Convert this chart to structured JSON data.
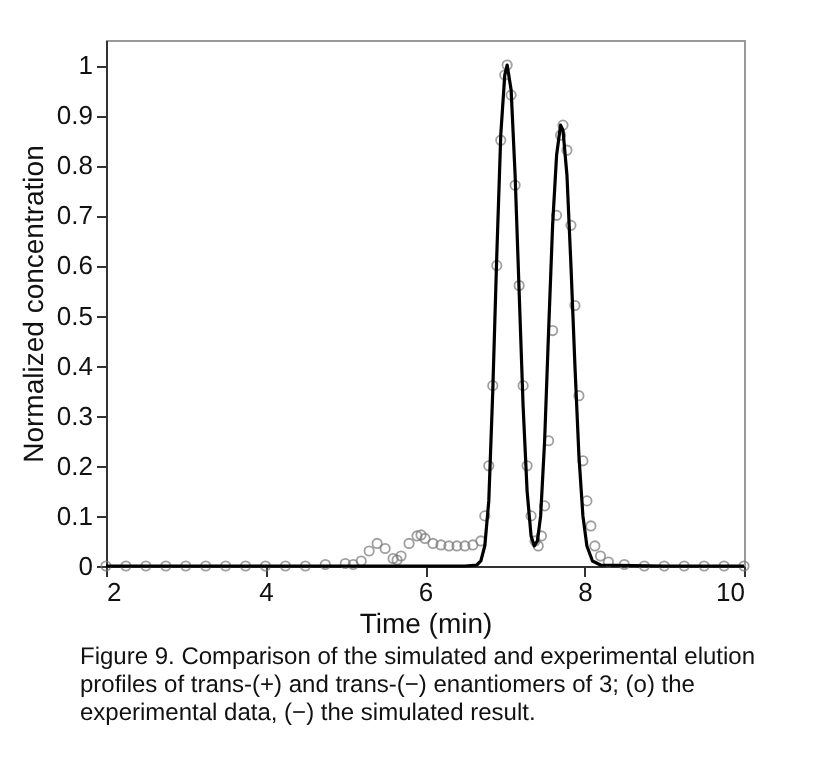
{
  "chart_data": {
    "type": "line",
    "xlabel": "Time (min)",
    "ylabel": "Normalized concentration",
    "xlim": [
      2,
      10
    ],
    "ylim": [
      0,
      1.05
    ],
    "xticks": [
      2,
      4,
      6,
      8,
      10
    ],
    "yticks": [
      0,
      0.1,
      0.2,
      0.3,
      0.4,
      0.5,
      0.6,
      0.7,
      0.8,
      0.9,
      1
    ],
    "grid": false,
    "annotations": [
      "Figure 9. Comparison of the simulated and experimental elution profiles of trans-(+) and trans-(−) enantiomers of 3; (o) the experimental data, (−) the simulated result."
    ],
    "series": [
      {
        "type": "scatter",
        "marker": "circle",
        "color": "#777777",
        "x": [
          2,
          2.25,
          2.5,
          2.75,
          3,
          3.25,
          3.5,
          3.75,
          4,
          4.25,
          4.5,
          4.75,
          5,
          5.1,
          5.2,
          5.3,
          5.4,
          5.5,
          5.6,
          5.65,
          5.7,
          5.8,
          5.9,
          5.95,
          6.0,
          6.1,
          6.2,
          6.3,
          6.4,
          6.5,
          6.6,
          6.7,
          6.75,
          6.8,
          6.85,
          6.9,
          6.95,
          7.0,
          7.03,
          7.08,
          7.13,
          7.18,
          7.23,
          7.28,
          7.33,
          7.38,
          7.42,
          7.46,
          7.5,
          7.55,
          7.6,
          7.65,
          7.7,
          7.73,
          7.78,
          7.83,
          7.88,
          7.93,
          7.98,
          8.03,
          8.08,
          8.13,
          8.2,
          8.3,
          8.5,
          8.75,
          9,
          9.25,
          9.5,
          9.75,
          10
        ],
        "values": [
          0,
          0,
          0,
          0,
          0,
          0,
          0,
          0,
          0,
          0,
          0,
          0.003,
          0.005,
          0.003,
          0.01,
          0.03,
          0.045,
          0.035,
          0.015,
          0.012,
          0.02,
          0.045,
          0.06,
          0.062,
          0.055,
          0.045,
          0.042,
          0.04,
          0.04,
          0.04,
          0.042,
          0.05,
          0.1,
          0.2,
          0.36,
          0.6,
          0.85,
          0.98,
          1.0,
          0.94,
          0.76,
          0.56,
          0.36,
          0.2,
          0.1,
          0.05,
          0.04,
          0.06,
          0.12,
          0.25,
          0.47,
          0.7,
          0.86,
          0.88,
          0.83,
          0.68,
          0.52,
          0.34,
          0.21,
          0.13,
          0.08,
          0.04,
          0.02,
          0.008,
          0.003,
          0,
          0,
          0,
          0,
          0,
          0
        ]
      },
      {
        "color": "#000000",
        "x": [
          2,
          3,
          4,
          5,
          6,
          6.5,
          6.65,
          6.7,
          6.75,
          6.8,
          6.85,
          6.9,
          6.95,
          7.0,
          7.03,
          7.08,
          7.13,
          7.18,
          7.23,
          7.28,
          7.33,
          7.37,
          7.41,
          7.45,
          7.5,
          7.55,
          7.6,
          7.65,
          7.7,
          7.73,
          7.78,
          7.83,
          7.88,
          7.93,
          7.98,
          8.03,
          8.1,
          8.2,
          9,
          10
        ],
        "values": [
          0,
          0,
          0,
          0,
          0,
          0,
          0.002,
          0.01,
          0.04,
          0.13,
          0.35,
          0.62,
          0.86,
          0.98,
          1.0,
          0.95,
          0.78,
          0.55,
          0.32,
          0.15,
          0.06,
          0.04,
          0.05,
          0.1,
          0.25,
          0.47,
          0.68,
          0.82,
          0.88,
          0.87,
          0.78,
          0.6,
          0.4,
          0.22,
          0.1,
          0.04,
          0.01,
          0.002,
          0,
          0
        ]
      }
    ]
  }
}
